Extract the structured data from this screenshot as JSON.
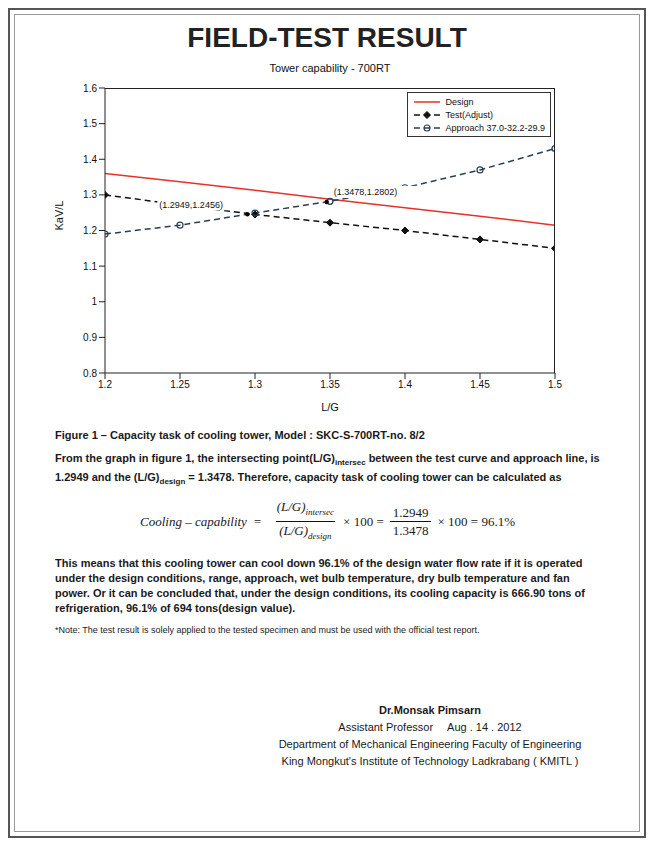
{
  "title": "FIELD-TEST RESULT",
  "chart_data": {
    "type": "line",
    "title": "Tower capability - 700RT",
    "x_label": "L/G",
    "y_label": "KaV/L",
    "x": [
      1.2,
      1.25,
      1.3,
      1.35,
      1.4,
      1.45,
      1.5
    ],
    "series": [
      {
        "name": "Design",
        "color": "#e8312a",
        "line_style": "solid",
        "marker": "none",
        "values": [
          1.36,
          1.337,
          1.313,
          1.288,
          1.264,
          1.24,
          1.215
        ]
      },
      {
        "name": "Test(Adjust)",
        "color": "#111111",
        "line_style": "dashed",
        "marker": "diamond",
        "values": [
          1.3,
          1.272,
          1.245,
          1.222,
          1.2,
          1.175,
          1.15
        ]
      },
      {
        "name": "Approach 37.0-32.2-29.9",
        "color": "#2a3f55",
        "line_style": "dashed",
        "marker": "circle",
        "values": [
          1.19,
          1.215,
          1.249,
          1.282,
          1.32,
          1.37,
          1.43
        ]
      }
    ],
    "annotations": [
      {
        "x": 1.3478,
        "y": 1.2802,
        "text": "(1.3478,1.2802)"
      },
      {
        "x": 1.2949,
        "y": 1.2456,
        "text": "(1.2949,1.2456)"
      }
    ],
    "xlim": [
      1.2,
      1.5
    ],
    "xticks": [
      1.2,
      1.25,
      1.3,
      1.35,
      1.4,
      1.45,
      1.5
    ],
    "ylim": [
      0.8,
      1.6
    ],
    "yticks": [
      0.8,
      0.9,
      1,
      1.1,
      1.2,
      1.3,
      1.4,
      1.5,
      1.6
    ],
    "grid": false,
    "legend": "upper right"
  },
  "caption": "Figure 1 – Capacity task of cooling tower, Model : SKC-S-700RT-no. 8/2",
  "paragraph1": [
    "From the graph in figure 1, the intersecting point(L/G)",
    {
      "sub": "intersec"
    },
    " between the test curve and approach line, is 1.2949 and the (L/G)",
    {
      "sub": "design"
    },
    " = 1.3478. Therefore, capacity task of cooling tower can be calculated as"
  ],
  "formula": {
    "lhs": "Cooling – capability",
    "equals": "=",
    "fraction1": {
      "numerator": {
        "text": "(L/G)",
        "sub": "intersec"
      },
      "denominator": {
        "text": "(L/G)",
        "sub": "design"
      }
    },
    "op1": "× 100 =",
    "fraction2": {
      "numerator": "1.2949",
      "denominator": "1.3478"
    },
    "op2": "× 100 = 96.1%"
  },
  "paragraph2": "This means that this cooling tower can cool down 96.1% of the design water flow rate if it is operated under the design conditions, range, approach, wet bulb temperature, dry bulb temperature and fan power. Or it can be concluded that, under the design conditions, its cooling capacity is 666.90 tons of refrigeration, 96.1% of 694 tons(design value).",
  "note": "*Note: The test result is solely applied to the tested specimen and must be used with the official test report.",
  "signature": {
    "name": "Dr.Monsak Pimsarn",
    "rank": "Assistant Professor",
    "date": "Aug . 14 . 2012",
    "department": "Department of Mechanical Engineering  Faculty of Engineering",
    "institute": "King Mongkut's Institute of Technology Ladkrabang ( KMITL )"
  }
}
